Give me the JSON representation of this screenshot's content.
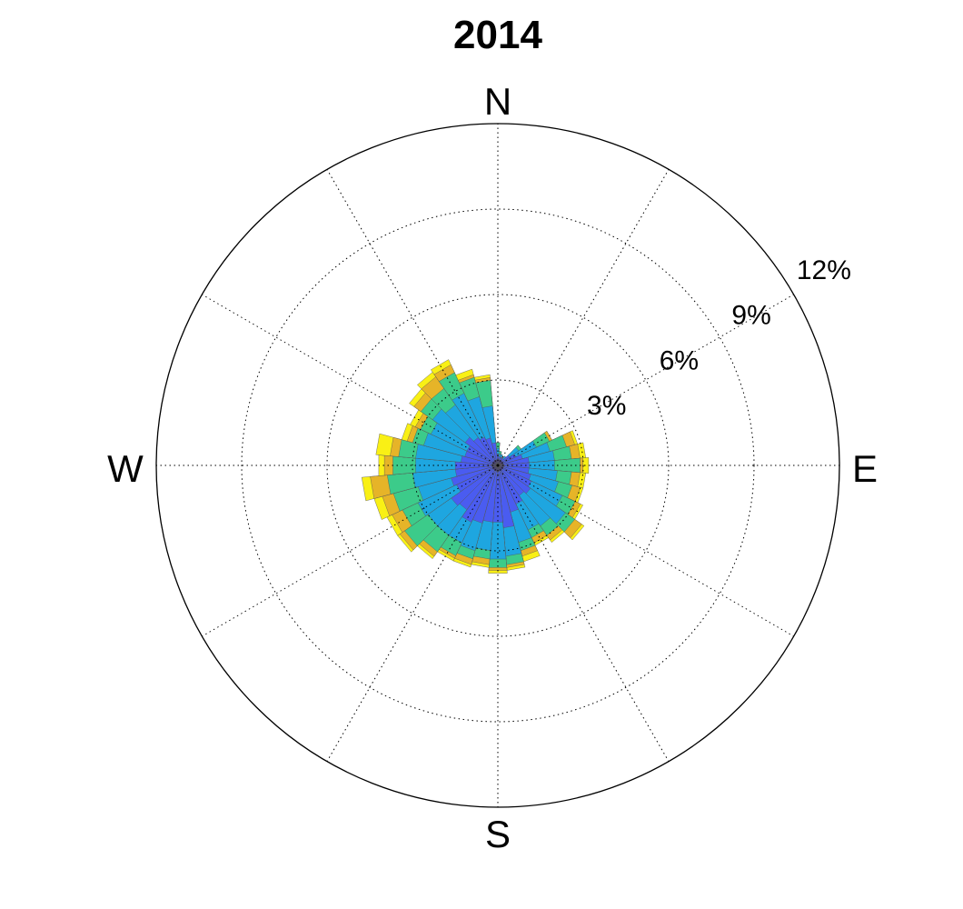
{
  "chart_data": {
    "type": "windrose",
    "title": "2014",
    "directions": [
      "N",
      "E",
      "S",
      "W"
    ],
    "radial_ticks": [
      3,
      6,
      9,
      12
    ],
    "radial_tick_labels": [
      "3%",
      "6%",
      "9%",
      "12%"
    ],
    "r_max": 12,
    "grid": true,
    "bin_width_deg": 10,
    "bin_colors": [
      "#3b2a8f",
      "#4a5cf0",
      "#1ea6e0",
      "#3ccb8a",
      "#e6b428",
      "#f9f015"
    ],
    "bins": [
      {
        "dir": 0,
        "values": [
          0.2,
          0.4,
          0.6,
          0.8,
          0.8,
          0.8
        ]
      },
      {
        "dir": 10,
        "values": [
          0.2,
          0.3,
          0.4,
          0.5,
          0.5,
          0.5
        ]
      },
      {
        "dir": 20,
        "values": [
          0.2,
          0.3,
          0.4,
          0.4,
          0.4,
          0.4
        ]
      },
      {
        "dir": 30,
        "values": [
          0.2,
          0.3,
          0.3,
          0.3,
          0.3,
          0.3
        ]
      },
      {
        "dir": 40,
        "values": [
          0.2,
          0.3,
          0.4,
          0.4,
          0.4,
          0.4
        ]
      },
      {
        "dir": 50,
        "values": [
          0.2,
          0.5,
          0.9,
          1.0,
          1.0,
          1.0
        ]
      },
      {
        "dir": 60,
        "values": [
          0.2,
          0.7,
          1.5,
          2.0,
          2.1,
          2.1
        ]
      },
      {
        "dir": 70,
        "values": [
          0.2,
          0.9,
          1.9,
          2.5,
          2.8,
          2.9
        ]
      },
      {
        "dir": 80,
        "values": [
          0.2,
          1.1,
          2.0,
          2.6,
          2.9,
          3.1
        ]
      },
      {
        "dir": 90,
        "values": [
          0.2,
          1.1,
          2.0,
          2.9,
          3.0,
          3.2
        ]
      },
      {
        "dir": 100,
        "values": [
          0.2,
          1.1,
          2.1,
          2.6,
          2.9,
          3.1
        ]
      },
      {
        "dir": 110,
        "values": [
          0.2,
          1.2,
          2.2,
          2.7,
          3.0,
          3.1
        ]
      },
      {
        "dir": 120,
        "values": [
          0.2,
          1.3,
          2.5,
          3.0,
          3.2,
          3.3
        ]
      },
      {
        "dir": 130,
        "values": [
          0.2,
          1.4,
          2.9,
          3.3,
          3.6,
          3.7
        ]
      },
      {
        "dir": 140,
        "values": [
          0.2,
          1.3,
          2.6,
          3.0,
          3.2,
          3.3
        ]
      },
      {
        "dir": 150,
        "values": [
          0.2,
          1.5,
          2.5,
          2.8,
          3.0,
          3.1
        ]
      },
      {
        "dir": 160,
        "values": [
          0.2,
          1.7,
          2.8,
          3.1,
          3.3,
          3.5
        ]
      },
      {
        "dir": 170,
        "values": [
          0.2,
          2.2,
          3.2,
          3.5,
          3.6,
          3.7
        ]
      },
      {
        "dir": 180,
        "values": [
          0.2,
          2.0,
          3.3,
          3.6,
          3.7,
          3.8
        ]
      },
      {
        "dir": 190,
        "values": [
          0.2,
          2.0,
          3.0,
          3.3,
          3.5,
          3.6
        ]
      },
      {
        "dir": 200,
        "values": [
          0.2,
          2.1,
          3.1,
          3.4,
          3.6,
          3.7
        ]
      },
      {
        "dir": 210,
        "values": [
          0.2,
          2.2,
          3.0,
          3.5,
          3.6,
          3.7
        ]
      },
      {
        "dir": 220,
        "values": [
          0.2,
          1.9,
          3.0,
          3.7,
          3.9,
          4.0
        ]
      },
      {
        "dir": 230,
        "values": [
          0.2,
          2.0,
          3.0,
          4.0,
          4.2,
          4.3
        ]
      },
      {
        "dir": 240,
        "values": [
          0.2,
          1.6,
          3.1,
          3.7,
          4.1,
          4.3
        ]
      },
      {
        "dir": 250,
        "values": [
          0.2,
          1.7,
          2.9,
          3.8,
          4.2,
          4.5
        ]
      },
      {
        "dir": 260,
        "values": [
          0.2,
          1.5,
          3.0,
          3.9,
          4.5,
          4.8
        ]
      },
      {
        "dir": 270,
        "values": [
          0.2,
          1.5,
          2.9,
          3.7,
          4.0,
          4.2
        ]
      },
      {
        "dir": 280,
        "values": [
          0.2,
          1.3,
          2.9,
          3.5,
          3.8,
          4.3
        ]
      },
      {
        "dir": 290,
        "values": [
          0.2,
          1.2,
          2.7,
          3.1,
          3.3,
          3.5
        ]
      },
      {
        "dir": 300,
        "values": [
          0.2,
          1.2,
          2.6,
          3.0,
          3.2,
          3.4
        ]
      },
      {
        "dir": 310,
        "values": [
          0.2,
          1.4,
          2.8,
          3.3,
          3.6,
          3.8
        ]
      },
      {
        "dir": 320,
        "values": [
          0.2,
          1.2,
          2.6,
          3.3,
          3.8,
          4.0
        ]
      },
      {
        "dir": 330,
        "values": [
          0.2,
          1.1,
          2.8,
          3.6,
          3.9,
          4.1
        ]
      },
      {
        "dir": 340,
        "values": [
          0.2,
          1.0,
          2.5,
          3.2,
          3.3,
          3.5
        ]
      },
      {
        "dir": 350,
        "values": [
          0.2,
          0.8,
          2.1,
          3.0,
          3.1,
          3.2
        ]
      }
    ]
  }
}
